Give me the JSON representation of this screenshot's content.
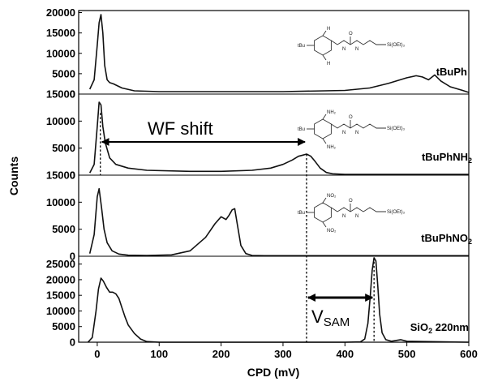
{
  "chart_data": {
    "type": "line",
    "xlabel": "CPD (mV)",
    "ylabel": "Counts",
    "xlim": [
      -30,
      600
    ],
    "x_ticks": [
      0,
      100,
      200,
      300,
      400,
      500,
      600
    ],
    "grid": false,
    "panels": [
      {
        "name": "tBuPh",
        "ylim": [
          0,
          20500
        ],
        "y_ticks": [
          0,
          5000,
          10000,
          15000,
          20000
        ],
        "series": [
          {
            "name": "tBuPh",
            "x": [
              -12,
              -5,
              0,
              3,
              6,
              9,
              12,
              16,
              20,
              26,
              40,
              60,
              100,
              200,
              300,
              400,
              440,
              470,
              500,
              515,
              525,
              535,
              545,
              555,
              570,
              590,
              600
            ],
            "y": [
              1200,
              3500,
              12000,
              17500,
              19500,
              15000,
              7000,
              3500,
              2800,
              2500,
              1500,
              800,
              600,
              600,
              600,
              900,
              1500,
              2600,
              4000,
              4500,
              4200,
              3500,
              4700,
              3200,
              1800,
              900,
              400
            ]
          }
        ],
        "molecule_substituent": "H",
        "sidechain_label": "Si(OEt)3"
      },
      {
        "name": "tBuPhNH2",
        "ylim": [
          0,
          15000
        ],
        "y_ticks": [
          0,
          5000,
          10000,
          15000
        ],
        "series": [
          {
            "name": "tBuPhNH2",
            "x": [
              -12,
              -5,
              0,
              3,
              6,
              9,
              13,
              20,
              30,
              50,
              80,
              150,
              200,
              250,
              280,
              300,
              315,
              325,
              332,
              338,
              345,
              352,
              360,
              370,
              380,
              400,
              600
            ],
            "y": [
              400,
              2000,
              9000,
              13500,
              13000,
              9000,
              6000,
              3200,
              2000,
              1300,
              900,
              700,
              700,
              900,
              1300,
              2000,
              2800,
              3500,
              3700,
              3900,
              3500,
              2500,
              1300,
              500,
              250,
              150,
              150
            ]
          }
        ],
        "molecule_substituent": "NH2",
        "sidechain_label": "Si(OEt)3"
      },
      {
        "name": "tBuPhNO2",
        "ylim": [
          0,
          15000
        ],
        "y_ticks": [
          0,
          5000,
          10000,
          15000
        ],
        "series": [
          {
            "name": "tBuPhNO2",
            "x": [
              -12,
              -5,
              0,
              3,
              7,
              11,
              16,
              24,
              35,
              50,
              80,
              120,
              150,
              175,
              190,
              200,
              208,
              213,
              218,
              222,
              226,
              232,
              240,
              250,
              270,
              600
            ],
            "y": [
              500,
              4000,
              11000,
              12500,
              9000,
              5000,
              2500,
              1000,
              400,
              200,
              150,
              250,
              1000,
              3500,
              6000,
              7300,
              6800,
              7600,
              8600,
              8800,
              6000,
              2000,
              500,
              150,
              100,
              100
            ]
          }
        ],
        "molecule_substituent": "NO2",
        "sidechain_label": "Si(OEt)3"
      },
      {
        "name": "SiO2 220nm",
        "ylim": [
          0,
          27500
        ],
        "y_ticks": [
          0,
          5000,
          10000,
          15000,
          20000,
          25000
        ],
        "series": [
          {
            "name": "SiO2 220nm",
            "x": [
              -15,
              -8,
              -2,
              2,
              6,
              10,
              15,
              20,
              25,
              30,
              35,
              40,
              45,
              50,
              60,
              70,
              80,
              100,
              400,
              425,
              432,
              437,
              441,
              444,
              447,
              450,
              453,
              456,
              460,
              466,
              475,
              490,
              500,
              600
            ],
            "y": [
              0,
              1500,
              10000,
              17000,
              20500,
              19500,
              17500,
              16000,
              16000,
              15500,
              14000,
              11000,
              8000,
              5500,
              2800,
              1000,
              200,
              0,
              0,
              100,
              1000,
              6000,
              15000,
              23000,
              27000,
              26000,
              18000,
              9000,
              3000,
              800,
              300,
              800,
              300,
              0
            ]
          }
        ]
      }
    ],
    "annotations": [
      {
        "type": "arrow",
        "label": "WF shift",
        "panel": "tBuPhNH2",
        "x_from": 5,
        "x_to": 338
      },
      {
        "type": "arrow",
        "label": "V",
        "label_subscript": "SAM",
        "panel": "SiO2 220nm",
        "x_from": 338,
        "x_to": 447
      },
      {
        "type": "dotted_line",
        "x": 5,
        "panel": "tBuPhNH2"
      },
      {
        "type": "dotted_line",
        "x": 338,
        "panels": [
          "tBuPhNH2",
          "tBuPhNO2",
          "SiO2 220nm"
        ]
      },
      {
        "type": "dotted_line",
        "x": 447,
        "panel": "SiO2 220nm"
      }
    ]
  },
  "panel_labels": {
    "p0_base": "tBuPh",
    "p1_base": "tBuPhNH",
    "p1_sub": "2",
    "p2_base": "tBuPhNO",
    "p2_sub": "2",
    "p3_base": "SiO",
    "p3_sub": "2",
    "p3_rest": " 220nm"
  },
  "annotation_labels": {
    "wf_shift": "WF shift",
    "vsam_main": "V",
    "vsam_sub": "SAM"
  },
  "molecule_text": {
    "tbu": "tBu",
    "h": "H",
    "nh2": "NH₂",
    "no2": "NO₂",
    "nh": "N",
    "hh": "H",
    "o": "O",
    "si": "Si(OEt)₃"
  }
}
